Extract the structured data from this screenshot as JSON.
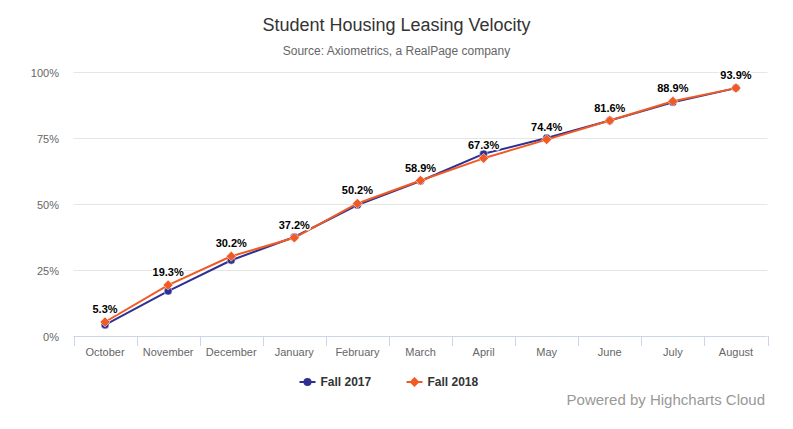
{
  "chart_data": {
    "type": "line",
    "title": "Student Housing Leasing Velocity",
    "subtitle": "Source: Axiometrics, a RealPage company",
    "credits": "Powered by Highcharts Cloud",
    "categories": [
      "October",
      "November",
      "December",
      "January",
      "February",
      "March",
      "April",
      "May",
      "June",
      "July",
      "August"
    ],
    "series": [
      {
        "name": "Fall 2017",
        "color": "#2e3192",
        "marker": "circle",
        "values": [
          4.2,
          17.0,
          28.7,
          37.5,
          49.6,
          58.7,
          69.0,
          75.0,
          81.6,
          88.5,
          93.9
        ]
      },
      {
        "name": "Fall 2018",
        "color": "#f15a24",
        "marker": "diamond",
        "data_labels": true,
        "values": [
          5.3,
          19.3,
          30.2,
          37.2,
          50.2,
          58.9,
          67.3,
          74.4,
          81.6,
          88.9,
          93.9
        ],
        "value_labels": [
          "5.3%",
          "19.3%",
          "30.2%",
          "37.2%",
          "50.2%",
          "58.9%",
          "67.3%",
          "74.4%",
          "81.6%",
          "88.9%",
          "93.9%"
        ]
      }
    ],
    "ylim": [
      0,
      100
    ],
    "yticks": [
      {
        "value": 0,
        "label": "0%"
      },
      {
        "value": 25,
        "label": "25%"
      },
      {
        "value": 50,
        "label": "50%"
      },
      {
        "value": 75,
        "label": "75%"
      },
      {
        "value": 100,
        "label": "100%"
      }
    ],
    "grid": true,
    "legend": "bottom"
  }
}
